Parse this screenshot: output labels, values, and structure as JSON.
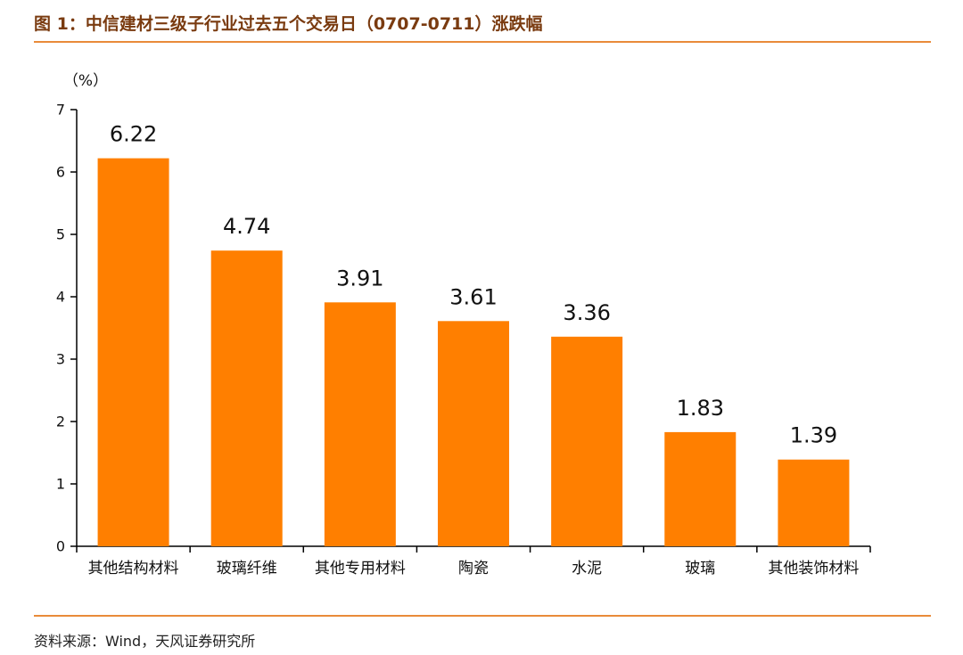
{
  "header": {
    "title": "图 1：中信建材三级子行业过去五个交易日（0707-0711）涨跌幅"
  },
  "footer": {
    "source": "资料来源：Wind，天风证券研究所"
  },
  "colors": {
    "bar": "#ff7f00",
    "rule": "#e98b3a",
    "title": "#7a3b10"
  },
  "chart_data": {
    "type": "bar",
    "title": "",
    "xlabel": "",
    "ylabel": "（%）",
    "ylim": [
      0,
      7
    ],
    "yticks": [
      0,
      1,
      2,
      3,
      4,
      5,
      6,
      7
    ],
    "grid": false,
    "categories": [
      "其他结构材料",
      "玻璃纤维",
      "其他专用材料",
      "陶瓷",
      "水泥",
      "玻璃",
      "其他装饰材料"
    ],
    "values": [
      6.22,
      4.74,
      3.91,
      3.61,
      3.36,
      1.83,
      1.39
    ],
    "value_labels": [
      "6.22",
      "4.74",
      "3.91",
      "3.61",
      "3.36",
      "1.83",
      "1.39"
    ]
  }
}
